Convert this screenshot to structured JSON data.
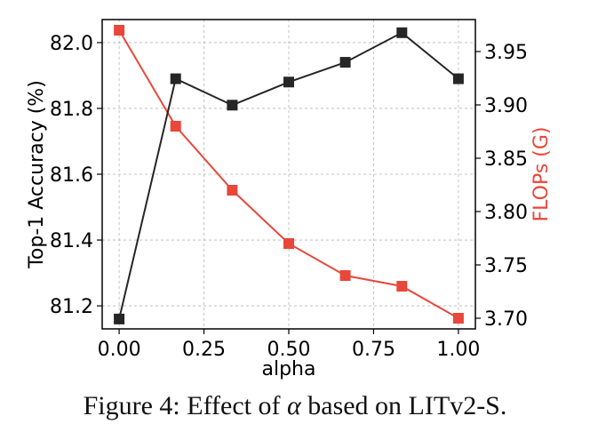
{
  "chart_data": {
    "type": "line",
    "xlabel": "alpha",
    "x": [
      0.0,
      0.1667,
      0.3333,
      0.5,
      0.6667,
      0.8333,
      1.0
    ],
    "xlim": [
      -0.05,
      1.05
    ],
    "xticks": [
      0.0,
      0.25,
      0.5,
      0.75,
      1.0
    ],
    "xtick_labels": [
      "0.00",
      "0.25",
      "0.50",
      "0.75",
      "1.00"
    ],
    "grid": true,
    "left_axis": {
      "label": "Top-1 Accuracy (%)",
      "ylim": [
        81.13,
        82.07
      ],
      "ticks": [
        81.2,
        81.4,
        81.6,
        81.8,
        82.0
      ],
      "tick_labels": [
        "81.2",
        "81.4",
        "81.6",
        "81.8",
        "82.0"
      ]
    },
    "right_axis": {
      "label": "FLOPs (G)",
      "ylim": [
        3.69,
        3.98
      ],
      "ticks": [
        3.7,
        3.75,
        3.8,
        3.85,
        3.9,
        3.95
      ],
      "tick_labels": [
        "3.70",
        "3.75",
        "3.80",
        "3.85",
        "3.90",
        "3.95"
      ]
    },
    "series": [
      {
        "name": "Top-1 Accuracy (%)",
        "axis": "left",
        "color": "#262626",
        "marker": "square",
        "values": [
          81.16,
          81.89,
          81.81,
          81.88,
          81.94,
          82.03,
          81.89
        ]
      },
      {
        "name": "FLOPs (G)",
        "axis": "right",
        "color": "#e8473a",
        "marker": "square",
        "values": [
          3.97,
          3.88,
          3.82,
          3.77,
          3.74,
          3.73,
          3.7
        ]
      }
    ]
  },
  "caption": {
    "prefix": "Figure 4: Effect of ",
    "symbol": "α",
    "suffix": " based on LITv2-S."
  }
}
